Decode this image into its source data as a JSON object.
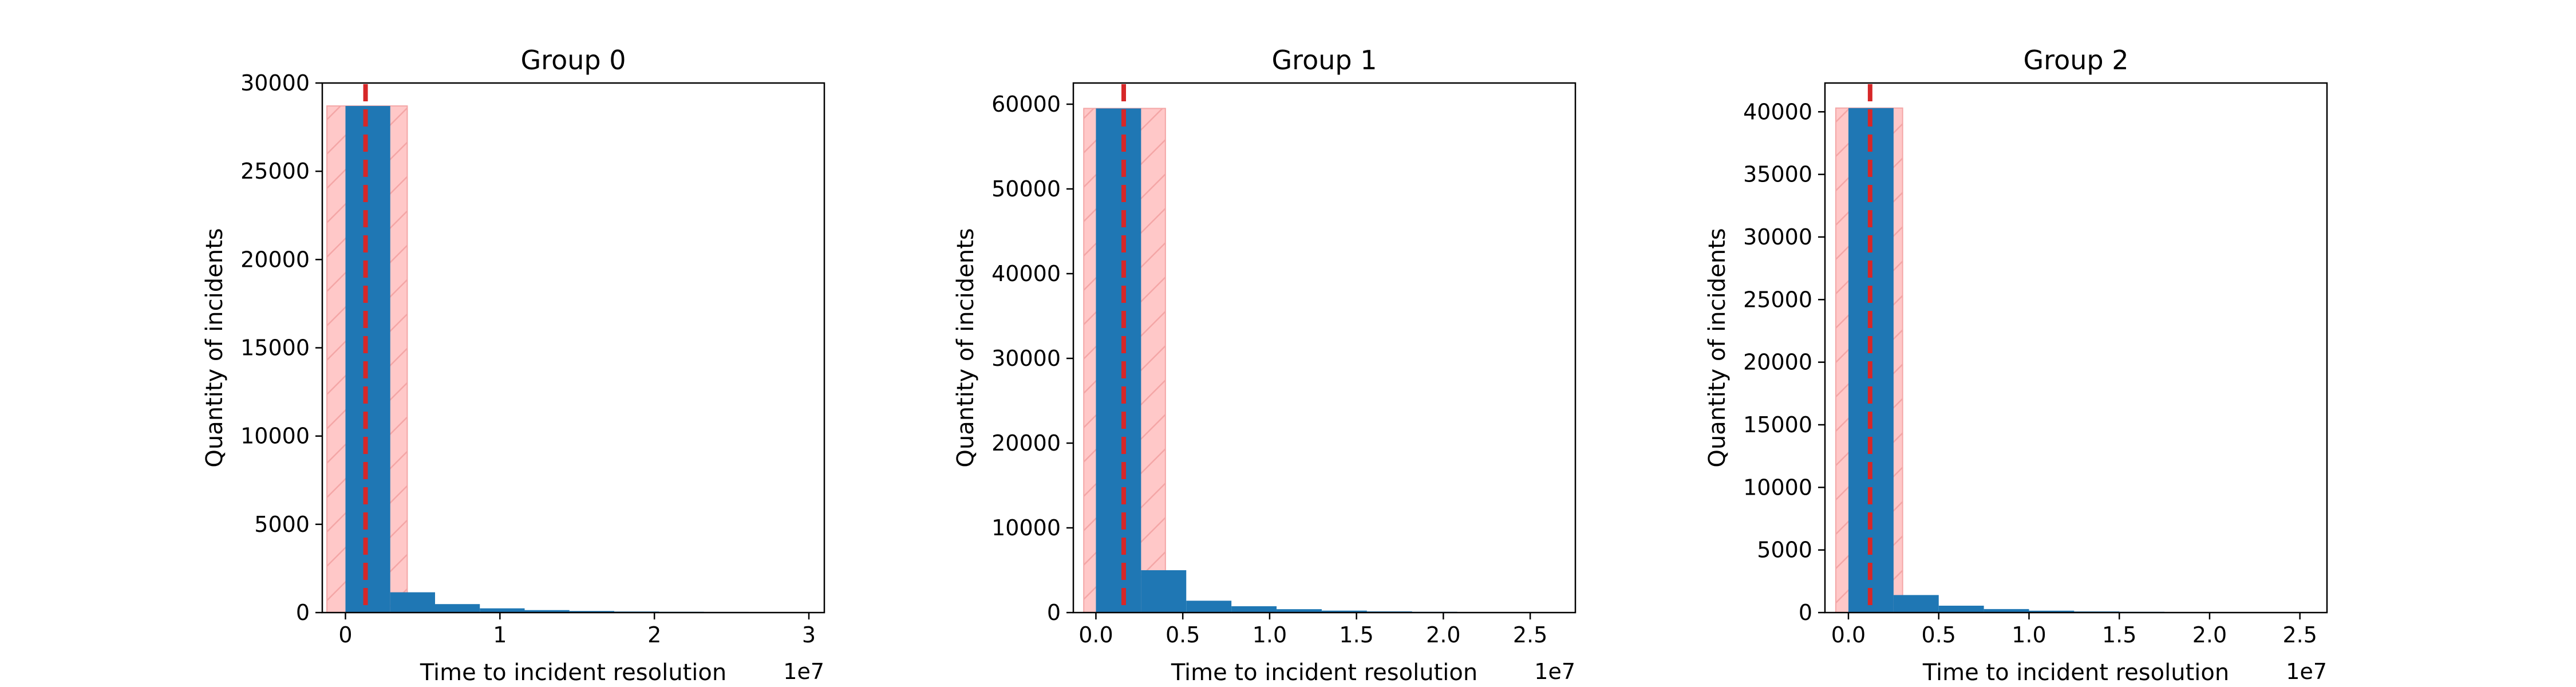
{
  "chart_data": [
    {
      "type": "bar",
      "title": "Group 0",
      "xlabel": "Time to incident resolution",
      "ylabel": "Quantity of incidents",
      "x_offset_label": "1e7",
      "x_scale": 10000000,
      "xlim": [
        -1500000,
        31000000
      ],
      "ylim": [
        0,
        30000
      ],
      "xticks": [
        0,
        10000000,
        20000000,
        30000000
      ],
      "xtick_labels": [
        "0",
        "1",
        "2",
        "3"
      ],
      "yticks": [
        0,
        5000,
        10000,
        15000,
        20000,
        25000,
        30000
      ],
      "ytick_labels": [
        "0",
        "5000",
        "10000",
        "15000",
        "20000",
        "25000",
        "30000"
      ],
      "bin_edges": [
        0,
        2900000,
        5800000,
        8700000,
        11600000,
        14500000,
        17400000,
        20300000,
        23200000,
        26100000,
        29000000
      ],
      "values": [
        28700,
        1150,
        480,
        240,
        140,
        90,
        60,
        45,
        35,
        25
      ],
      "median": 1300000,
      "band": [
        -1200000,
        4000000
      ],
      "band_top": 28700,
      "colors": {
        "bars": "#1f77b4",
        "median_line": "#d62728",
        "band_fill": "#ffc8c8",
        "band_hatch": "#f4a6a6"
      },
      "grid": false
    },
    {
      "type": "bar",
      "title": "Group 1",
      "xlabel": "Time to incident resolution",
      "ylabel": "Quantity of incidents",
      "x_offset_label": "1e7",
      "x_scale": 10000000,
      "xlim": [
        -1300000,
        27600000
      ],
      "ylim": [
        0,
        62500
      ],
      "xticks": [
        0,
        5000000,
        10000000,
        15000000,
        20000000,
        25000000
      ],
      "xtick_labels": [
        "0.0",
        "0.5",
        "1.0",
        "1.5",
        "2.0",
        "2.5"
      ],
      "yticks": [
        0,
        10000,
        20000,
        30000,
        40000,
        50000,
        60000
      ],
      "ytick_labels": [
        "0",
        "10000",
        "20000",
        "30000",
        "40000",
        "50000",
        "60000"
      ],
      "bin_edges": [
        0,
        2600000,
        5200000,
        7800000,
        10400000,
        13000000,
        15600000,
        18200000,
        20800000
      ],
      "values": [
        59500,
        5000,
        1400,
        750,
        400,
        230,
        140,
        90
      ],
      "median": 1600000,
      "band": [
        -700000,
        4000000
      ],
      "band_top": 59500,
      "colors": {
        "bars": "#1f77b4",
        "median_line": "#d62728",
        "band_fill": "#ffc8c8",
        "band_hatch": "#f4a6a6"
      },
      "grid": false
    },
    {
      "type": "bar",
      "title": "Group 2",
      "xlabel": "Time to incident resolution",
      "ylabel": "Quantity of incidents",
      "x_offset_label": "1e7",
      "x_scale": 10000000,
      "xlim": [
        -1300000,
        26500000
      ],
      "ylim": [
        0,
        42300
      ],
      "xticks": [
        0,
        5000000,
        10000000,
        15000000,
        20000000,
        25000000
      ],
      "xtick_labels": [
        "0.0",
        "0.5",
        "1.0",
        "1.5",
        "2.0",
        "2.5"
      ],
      "yticks": [
        0,
        5000,
        10000,
        15000,
        20000,
        25000,
        30000,
        35000,
        40000
      ],
      "ytick_labels": [
        "0",
        "5000",
        "10000",
        "15000",
        "20000",
        "25000",
        "30000",
        "35000",
        "40000"
      ],
      "bin_edges": [
        0,
        2500000,
        5000000,
        7500000,
        10000000,
        12500000,
        15000000,
        17500000,
        20000000
      ],
      "values": [
        40300,
        1400,
        550,
        280,
        150,
        90,
        60,
        40
      ],
      "median": 1200000,
      "band": [
        -700000,
        3000000
      ],
      "band_top": 40300,
      "colors": {
        "bars": "#1f77b4",
        "median_line": "#d62728",
        "band_fill": "#ffc8c8",
        "band_hatch": "#f4a6a6"
      },
      "grid": false
    }
  ]
}
